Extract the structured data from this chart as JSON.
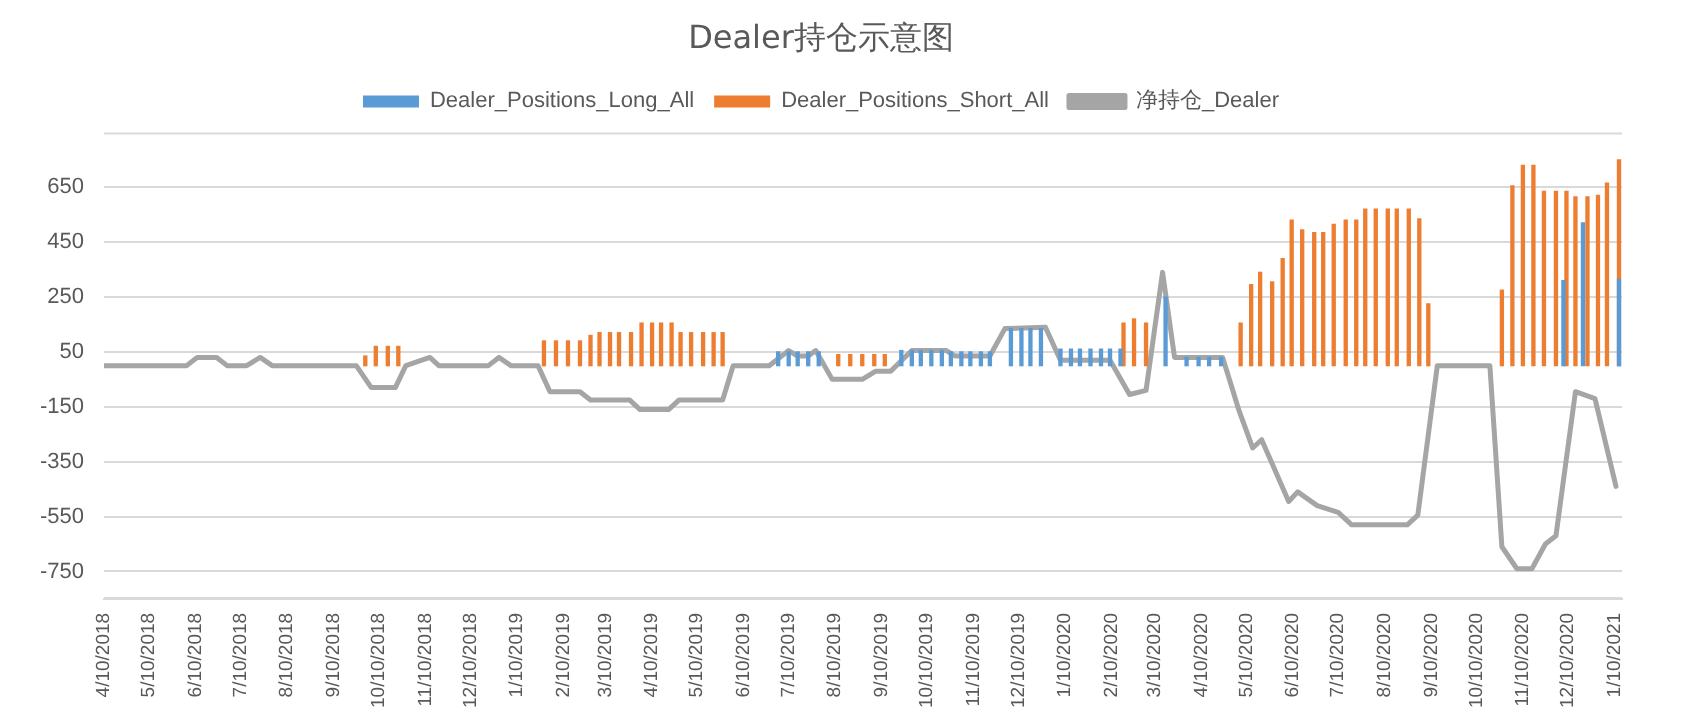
{
  "chart_data": {
    "type": "bar",
    "title": "Dealer持仓示意图",
    "legend": "top",
    "grid": "y",
    "xlim": [
      "2018-04-10",
      "2021-01-15"
    ],
    "xticks": [
      {
        "value": "2018-04-10",
        "label": "4/10/2018"
      },
      {
        "value": "2018-05-10",
        "label": "5/10/2018"
      },
      {
        "value": "2018-06-10",
        "label": "6/10/2018"
      },
      {
        "value": "2018-07-10",
        "label": "7/10/2018"
      },
      {
        "value": "2018-08-10",
        "label": "8/10/2018"
      },
      {
        "value": "2018-09-10",
        "label": "9/10/2018"
      },
      {
        "value": "2018-10-10",
        "label": "10/10/2018"
      },
      {
        "value": "2018-11-10",
        "label": "11/10/2018"
      },
      {
        "value": "2018-12-10",
        "label": "12/10/2018"
      },
      {
        "value": "2019-01-10",
        "label": "1/10/2019"
      },
      {
        "value": "2019-02-10",
        "label": "2/10/2019"
      },
      {
        "value": "2019-03-10",
        "label": "3/10/2019"
      },
      {
        "value": "2019-04-10",
        "label": "4/10/2019"
      },
      {
        "value": "2019-05-10",
        "label": "5/10/2019"
      },
      {
        "value": "2019-06-10",
        "label": "6/10/2019"
      },
      {
        "value": "2019-07-10",
        "label": "7/10/2019"
      },
      {
        "value": "2019-08-10",
        "label": "8/10/2019"
      },
      {
        "value": "2019-09-10",
        "label": "9/10/2019"
      },
      {
        "value": "2019-10-10",
        "label": "10/10/2019"
      },
      {
        "value": "2019-11-10",
        "label": "11/10/2019"
      },
      {
        "value": "2019-12-10",
        "label": "12/10/2019"
      },
      {
        "value": "2020-01-10",
        "label": "1/10/2020"
      },
      {
        "value": "2020-02-10",
        "label": "2/10/2020"
      },
      {
        "value": "2020-03-10",
        "label": "3/10/2020"
      },
      {
        "value": "2020-04-10",
        "label": "4/10/2020"
      },
      {
        "value": "2020-05-10",
        "label": "5/10/2020"
      },
      {
        "value": "2020-06-10",
        "label": "6/10/2020"
      },
      {
        "value": "2020-07-10",
        "label": "7/10/2020"
      },
      {
        "value": "2020-08-10",
        "label": "8/10/2020"
      },
      {
        "value": "2020-09-10",
        "label": "9/10/2020"
      },
      {
        "value": "2020-10-10",
        "label": "10/10/2020"
      },
      {
        "value": "2020-11-10",
        "label": "11/10/2020"
      },
      {
        "value": "2020-12-10",
        "label": "12/10/2020"
      },
      {
        "value": "2021-01-10",
        "label": "1/10/2021"
      }
    ],
    "ylim": [
      -850,
      850
    ],
    "yticks": [
      650,
      450,
      250,
      50,
      -150,
      -350,
      -550,
      -750
    ],
    "series": [
      {
        "name": "Dealer_Positions_Long_All",
        "color": "#5b9bd5",
        "x": [
          "2019-07-03",
          "2019-07-10",
          "2019-07-16",
          "2019-07-23",
          "2019-07-30",
          "2019-09-23",
          "2019-09-30",
          "2019-10-06",
          "2019-10-13",
          "2019-10-20",
          "2019-10-26",
          "2019-11-02",
          "2019-11-08",
          "2019-11-15",
          "2019-11-21",
          "2019-12-05",
          "2019-12-12",
          "2019-12-18",
          "2019-12-25",
          "2020-01-07",
          "2020-01-14",
          "2020-01-20",
          "2020-01-27",
          "2020-02-03",
          "2020-02-09",
          "2020-02-16",
          "2020-03-17",
          "2020-03-31",
          "2020-04-08",
          "2020-04-15",
          "2020-04-23",
          "2020-12-07",
          "2020-12-20",
          "2021-01-13"
        ],
        "values": [
          50,
          50,
          50,
          50,
          50,
          55,
          55,
          55,
          55,
          55,
          50,
          50,
          50,
          50,
          50,
          135,
          135,
          135,
          135,
          60,
          60,
          60,
          60,
          60,
          60,
          60,
          250,
          30,
          30,
          30,
          30,
          310,
          520,
          315
        ]
      },
      {
        "name": "Dealer_Positions_Short_All",
        "color": "#ed7d31",
        "x": [
          "2018-10-01",
          "2018-10-08",
          "2018-10-16",
          "2018-10-23",
          "2019-01-28",
          "2019-02-05",
          "2019-02-13",
          "2019-02-21",
          "2019-02-28",
          "2019-03-06",
          "2019-03-13",
          "2019-03-19",
          "2019-03-27",
          "2019-04-03",
          "2019-04-10",
          "2019-04-16",
          "2019-04-23",
          "2019-04-29",
          "2019-05-06",
          "2019-05-14",
          "2019-05-21",
          "2019-05-27",
          "2019-08-12",
          "2019-08-20",
          "2019-08-28",
          "2019-09-05",
          "2019-09-12",
          "2020-02-18",
          "2020-02-25",
          "2020-03-04",
          "2020-05-06",
          "2020-05-13",
          "2020-05-19",
          "2020-05-27",
          "2020-06-03",
          "2020-06-09",
          "2020-06-16",
          "2020-06-24",
          "2020-06-30",
          "2020-07-07",
          "2020-07-15",
          "2020-07-22",
          "2020-07-28",
          "2020-08-04",
          "2020-08-12",
          "2020-08-18",
          "2020-08-26",
          "2020-09-02",
          "2020-09-08",
          "2020-10-27",
          "2020-11-03",
          "2020-11-10",
          "2020-11-17",
          "2020-11-24",
          "2020-12-02",
          "2020-12-09",
          "2020-12-15",
          "2020-12-23",
          "2020-12-30",
          "2021-01-05",
          "2021-01-13"
        ],
        "values": [
          35,
          70,
          70,
          70,
          90,
          90,
          90,
          90,
          110,
          120,
          120,
          120,
          120,
          155,
          155,
          155,
          155,
          120,
          120,
          120,
          120,
          120,
          40,
          40,
          40,
          40,
          40,
          155,
          170,
          155,
          155,
          295,
          340,
          305,
          390,
          530,
          495,
          485,
          485,
          515,
          530,
          530,
          570,
          570,
          570,
          570,
          570,
          535,
          225,
          275,
          655,
          730,
          730,
          635,
          635,
          635,
          615,
          615,
          620,
          665,
          750
        ]
      },
      {
        "name": "净持仓_Dealer",
        "type": "line",
        "color": "#a5a5a5",
        "x": [
          "2018-04-10",
          "2018-06-04",
          "2018-06-11",
          "2018-06-24",
          "2018-07-01",
          "2018-07-14",
          "2018-07-23",
          "2018-07-31",
          "2018-09-25",
          "2018-10-05",
          "2018-10-21",
          "2018-10-28",
          "2018-11-13",
          "2018-11-19",
          "2018-12-22",
          "2018-12-29",
          "2019-01-06",
          "2019-01-24",
          "2019-02-01",
          "2019-02-21",
          "2019-02-28",
          "2019-03-26",
          "2019-04-02",
          "2019-04-21",
          "2019-04-28",
          "2019-05-27",
          "2019-06-03",
          "2019-06-27",
          "2019-07-10",
          "2019-07-16",
          "2019-07-23",
          "2019-07-28",
          "2019-08-08",
          "2019-08-28",
          "2019-09-06",
          "2019-09-16",
          "2019-09-30",
          "2019-10-23",
          "2019-10-29",
          "2019-11-21",
          "2019-12-01",
          "2019-12-28",
          "2020-01-07",
          "2020-02-09",
          "2020-02-22",
          "2020-03-04",
          "2020-03-15",
          "2020-03-23",
          "2020-04-24",
          "2020-05-05",
          "2020-05-14",
          "2020-05-20",
          "2020-06-07",
          "2020-06-13",
          "2020-06-26",
          "2020-07-10",
          "2020-07-19",
          "2020-08-25",
          "2020-09-01",
          "2020-09-14",
          "2020-10-19",
          "2020-10-27",
          "2020-11-06",
          "2020-11-16",
          "2020-11-25",
          "2020-12-02",
          "2020-12-15",
          "2020-12-28",
          "2021-01-11"
        ],
        "values": [
          0,
          0,
          30,
          30,
          0,
          0,
          30,
          0,
          0,
          -80,
          -80,
          0,
          30,
          0,
          0,
          30,
          0,
          0,
          -95,
          -95,
          -125,
          -125,
          -160,
          -160,
          -125,
          -125,
          0,
          0,
          55,
          35,
          35,
          55,
          -50,
          -50,
          -20,
          -20,
          55,
          55,
          35,
          35,
          135,
          140,
          20,
          20,
          -105,
          -90,
          340,
          30,
          30,
          -165,
          -300,
          -270,
          -495,
          -460,
          -510,
          -535,
          -580,
          -580,
          -545,
          0,
          0,
          -660,
          -740,
          -740,
          -650,
          -620,
          -95,
          -120,
          -440
        ]
      }
    ]
  }
}
